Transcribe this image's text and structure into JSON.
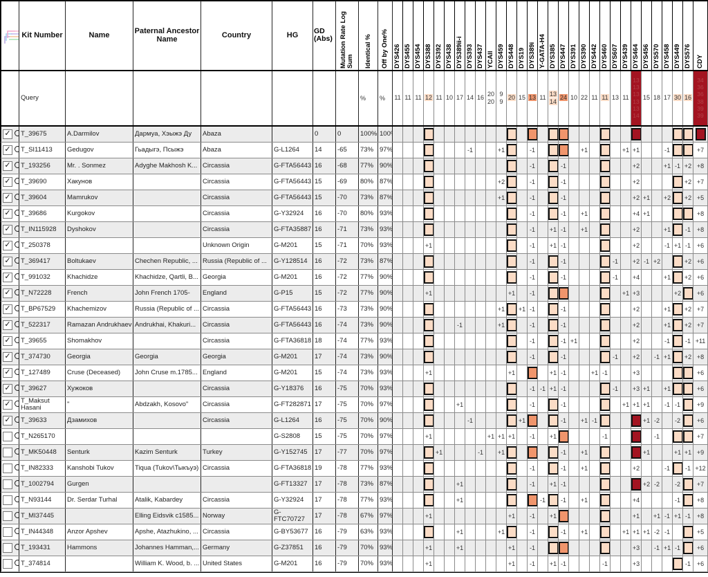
{
  "header": {
    "icon": "phylo-tree-icon",
    "kit": "Kit Number",
    "name": "Name",
    "ancestor": "Paternal Ancestor Name",
    "country": "Country",
    "hg": "HG",
    "gd": "GD (Abs)",
    "mutation": "Mutation Rate Log Sum",
    "identical": "Identical %",
    "offbyone": "Off by One%"
  },
  "markers": [
    "DYS426",
    "DYS455",
    "DYS454",
    "DYS388",
    "DYS392",
    "DYS438",
    "DYS389ii-i",
    "DYS393",
    "DYS437",
    "YCAII",
    "DYS459",
    "DYS448",
    "DYS19",
    "DYS389i",
    "Y-GATA-H4",
    "DYS385",
    "DYS447",
    "DYS391",
    "DYS390",
    "DYS442",
    "DYS460",
    "DYS607",
    "DYS439",
    "DYS464",
    "DYS456",
    "DYS570",
    "DYS458",
    "DYS449",
    "DYS576",
    "CDY"
  ],
  "highlight": {
    "DYS388": 1,
    "DYS448": 1,
    "DYS389i": 2,
    "DYS447": 2,
    "DYS385": 1,
    "DYS460": 1,
    "DYS449": 1,
    "DYS576": 1,
    "DYS464": 3,
    "CDY": 3
  },
  "colors": {
    "tone1": "#fbdcc6",
    "tone2": "#f0956c",
    "darkred": "#a31421",
    "darkred_text": "#b5434a"
  },
  "query": {
    "label": "Query",
    "identical": "%",
    "offbyone": "%",
    "values": [
      "11",
      "11",
      "11",
      "12",
      "11",
      "10",
      "17",
      "14",
      "16",
      "20 20",
      "9 9",
      "20",
      "15",
      "13",
      "11",
      "13 14",
      "24",
      "10",
      "22",
      "11",
      "11",
      "13",
      "11",
      "13 13 13 13 13 14",
      "15",
      "18",
      "17",
      "30",
      "16",
      "34 36 36 38 39 39"
    ]
  },
  "rows": [
    {
      "kit": "T_39675",
      "name": "A.Darmilov",
      "anc": "Дармуа, Хэыжэ Ду",
      "country": "Abaza",
      "hg": "",
      "gd": "0",
      "mr": "0",
      "ident": "100%",
      "off1": "100%",
      "checked": true,
      "dev": {},
      "box": [
        "DYS388",
        "DYS448",
        "DYS389i",
        "DYS385",
        "DYS447",
        "DYS460",
        "DYS464",
        "DYS449",
        "DYS576",
        "CDY"
      ]
    },
    {
      "kit": "T_SI11413",
      "name": "Gedugov",
      "anc": "Гьадыгэ, Псыжэ",
      "country": "Abaza",
      "hg": "G-L1264",
      "gd": "14",
      "mr": "-65",
      "ident": "73%",
      "off1": "97%",
      "checked": true,
      "dev": {
        "DYS393": "-1",
        "DYS459": "+1",
        "DYS389i": "-1",
        "DYS390": "+1",
        "DYS439": "+1",
        "DYS464": "+1",
        "DYS458": "-1",
        "CDY": "+7"
      },
      "box": [
        "DYS388",
        "DYS448",
        "DYS385",
        "DYS447",
        "DYS460",
        "DYS449",
        "DYS576"
      ]
    },
    {
      "kit": "T_193256",
      "name": "Mr. . Sonmez",
      "anc": "Adyghe Makhosh K...",
      "country": "Circassia",
      "hg": "G-FTA56443",
      "gd": "16",
      "mr": "-68",
      "ident": "77%",
      "off1": "90%",
      "checked": true,
      "dev": {
        "DYS389i": "-1",
        "DYS447": "-1",
        "DYS464": "+2",
        "DYS458": "+1",
        "DYS449": "-1",
        "DYS576": "+2",
        "CDY": "+8"
      },
      "box": [
        "DYS388",
        "DYS448",
        "DYS385",
        "DYS460"
      ]
    },
    {
      "kit": "T_39690",
      "name": "Хакунов",
      "anc": "",
      "country": "Circassia",
      "hg": "G-FTA56443",
      "gd": "15",
      "mr": "-69",
      "ident": "80%",
      "off1": "87%",
      "checked": true,
      "dev": {
        "DYS459": "+2",
        "DYS389i": "-1",
        "DYS447": "-1",
        "DYS464": "+2",
        "DYS576": "+2",
        "CDY": "+7"
      },
      "box": [
        "DYS388",
        "DYS448",
        "DYS385",
        "DYS460",
        "DYS449"
      ]
    },
    {
      "kit": "T_39604",
      "name": "Mamrukov",
      "anc": "",
      "country": "Circassia",
      "hg": "G-FTA56443",
      "gd": "15",
      "mr": "-70",
      "ident": "73%",
      "off1": "87%",
      "checked": true,
      "dev": {
        "DYS459": "+1",
        "DYS389i": "-1",
        "DYS447": "-1",
        "DYS464": "+2",
        "DYS456": "+1",
        "DYS458": "+2",
        "DYS576": "+2",
        "CDY": "+5"
      },
      "box": [
        "DYS388",
        "DYS448",
        "DYS385",
        "DYS460",
        "DYS449"
      ]
    },
    {
      "kit": "T_39686",
      "name": "Kurgokov",
      "anc": "",
      "country": "Circassia",
      "hg": "G-Y32924",
      "gd": "16",
      "mr": "-70",
      "ident": "80%",
      "off1": "93%",
      "checked": true,
      "dev": {
        "DYS389i": "-1",
        "DYS447": "-1",
        "DYS390": "+1",
        "DYS464": "+4",
        "DYS456": "+1",
        "CDY": "+8"
      },
      "box": [
        "DYS388",
        "DYS448",
        "DYS385",
        "DYS460",
        "DYS449",
        "DYS576"
      ]
    },
    {
      "kit": "T_IN115928",
      "name": "Dyshokov",
      "anc": "",
      "country": "Circassia",
      "hg": "G-FTA35887",
      "gd": "16",
      "mr": "-71",
      "ident": "73%",
      "off1": "93%",
      "checked": true,
      "dev": {
        "DYS389i": "-1",
        "DYS385": "+1",
        "DYS447": "-1",
        "DYS390": "+1",
        "DYS464": "+2",
        "DYS458": "+1",
        "DYS576": "-1",
        "CDY": "+8"
      },
      "box": [
        "DYS388",
        "DYS448",
        "DYS460",
        "DYS449"
      ]
    },
    {
      "kit": "T_250378",
      "name": "",
      "anc": "",
      "country": "Unknown Origin",
      "hg": "G-M201",
      "gd": "15",
      "mr": "-71",
      "ident": "70%",
      "off1": "93%",
      "checked": true,
      "dev": {
        "DYS388": "+1",
        "DYS389i": "-1",
        "DYS385": "+1",
        "DYS447": "-1",
        "DYS464": "+2",
        "DYS458": "-1",
        "DYS449": "+1",
        "DYS576": "-1",
        "CDY": "+6"
      },
      "box": [
        "DYS448",
        "DYS460"
      ]
    },
    {
      "kit": "T_369417",
      "name": "Boltukaev",
      "anc": "Chechen Republic, ...",
      "country": "Russia (Republic of ...",
      "hg": "G-Y128514",
      "gd": "16",
      "mr": "-72",
      "ident": "73%",
      "off1": "87%",
      "checked": true,
      "dev": {
        "DYS389i": "-1",
        "DYS447": "-1",
        "DYS607": "-1",
        "DYS464": "+2",
        "DYS456": "-1",
        "DYS570": "+2",
        "DYS576": "+2",
        "CDY": "+6"
      },
      "box": [
        "DYS388",
        "DYS448",
        "DYS385",
        "DYS460",
        "DYS449"
      ]
    },
    {
      "kit": "T_991032",
      "name": "Khachidze",
      "anc": "Khachidze, Qartli, B...",
      "country": "Georgia",
      "hg": "G-M201",
      "gd": "16",
      "mr": "-72",
      "ident": "77%",
      "off1": "90%",
      "checked": true,
      "dev": {
        "DYS389i": "-1",
        "DYS447": "-1",
        "DYS607": "-1",
        "DYS464": "+4",
        "DYS458": "+1",
        "DYS576": "+2",
        "CDY": "+6"
      },
      "box": [
        "DYS388",
        "DYS448",
        "DYS385",
        "DYS460",
        "DYS449"
      ]
    },
    {
      "kit": "T_N72228",
      "name": "French",
      "anc": "John French 1705-",
      "country": "England",
      "hg": "G-P15",
      "gd": "15",
      "mr": "-72",
      "ident": "77%",
      "off1": "90%",
      "checked": true,
      "dev": {
        "DYS388": "+1",
        "DYS448": "+1",
        "DYS389i": "-1",
        "DYS439": "+1",
        "DYS464": "+3",
        "DYS449": "+2",
        "CDY": "+6"
      },
      "box": [
        "DYS385",
        "DYS447",
        "DYS460",
        "DYS576"
      ]
    },
    {
      "kit": "T_BP67529",
      "name": "Khachemizov",
      "anc": "Russia (Republic of ...",
      "country": "Circassia",
      "hg": "G-FTA56443",
      "gd": "16",
      "mr": "-73",
      "ident": "73%",
      "off1": "90%",
      "checked": true,
      "dev": {
        "DYS19": "+1",
        "DYS459": "+1",
        "DYS389i": "-1",
        "DYS447": "-1",
        "DYS464": "+2",
        "DYS458": "+1",
        "DYS576": "+2",
        "CDY": "+7"
      },
      "box": [
        "DYS388",
        "DYS448",
        "DYS385",
        "DYS460",
        "DYS449"
      ]
    },
    {
      "kit": "T_522317",
      "name": "Ramazan Andrukhaev",
      "anc": "Andrukhai, Khakuri...",
      "country": "Circassia",
      "hg": "G-FTA56443",
      "gd": "16",
      "mr": "-74",
      "ident": "73%",
      "off1": "90%",
      "checked": true,
      "dev": {
        "DYS389ii-i": "-1",
        "DYS459": "+1",
        "DYS389i": "-1",
        "DYS447": "-1",
        "DYS464": "+2",
        "DYS458": "+1",
        "DYS576": "+2",
        "CDY": "+7"
      },
      "box": [
        "DYS388",
        "DYS448",
        "DYS385",
        "DYS460",
        "DYS449"
      ]
    },
    {
      "kit": "T_39655",
      "name": "Shomakhov",
      "anc": "",
      "country": "Circassia",
      "hg": "G-FTA36818",
      "gd": "18",
      "mr": "-74",
      "ident": "77%",
      "off1": "93%",
      "checked": true,
      "dev": {
        "DYS389i": "-1",
        "DYS447": "-1",
        "DYS391": "+1",
        "DYS464": "+2",
        "DYS458": "-1",
        "DYS576": "-1",
        "CDY": "+11"
      },
      "box": [
        "DYS388",
        "DYS448",
        "DYS385",
        "DYS460",
        "DYS449"
      ]
    },
    {
      "kit": "T_374730",
      "name": "Georgia",
      "anc": "Georgia",
      "country": "Georgia",
      "hg": "G-M201",
      "gd": "17",
      "mr": "-74",
      "ident": "73%",
      "off1": "90%",
      "checked": true,
      "dev": {
        "DYS389i": "-1",
        "DYS447": "-1",
        "DYS607": "-1",
        "DYS464": "+2",
        "DYS570": "-1",
        "DYS458": "+1",
        "DYS576": "+2",
        "CDY": "+8"
      },
      "box": [
        "DYS388",
        "DYS448",
        "DYS385",
        "DYS460",
        "DYS449"
      ]
    },
    {
      "kit": "T_127489",
      "name": "Cruse (Deceased)",
      "anc": "John Cruse m.1785...",
      "country": "England",
      "hg": "G-M201",
      "gd": "15",
      "mr": "-74",
      "ident": "73%",
      "off1": "93%",
      "checked": true,
      "dev": {
        "DYS388": "+1",
        "DYS448": "+1",
        "DYS385": "+1",
        "DYS447": "-1",
        "DYS442": "+1",
        "DYS460": "-1",
        "DYS464": "+3",
        "CDY": "+6"
      },
      "box": [
        "DYS389i",
        "DYS449",
        "DYS576"
      ]
    },
    {
      "kit": "T_39627",
      "name": "Хужоков",
      "anc": "",
      "country": "Circassia",
      "hg": "G-Y18376",
      "gd": "16",
      "mr": "-75",
      "ident": "70%",
      "off1": "93%",
      "checked": true,
      "dev": {
        "DYS389i": "-1",
        "Y-GATA-H4": "-1",
        "DYS385": "+1",
        "DYS447": "-1",
        "DYS607": "-1",
        "DYS464": "+3",
        "DYS456": "+1",
        "DYS458": "+1",
        "CDY": "+6"
      },
      "box": [
        "DYS388",
        "DYS448",
        "DYS460",
        "DYS449",
        "DYS576"
      ]
    },
    {
      "kit": "T_Maksut Hasani",
      "name": "\"",
      "anc": "Abdzakh, Kosovo\"",
      "country": "Circassia",
      "hg": "G-FT282871",
      "gd": "17",
      "mr": "-75",
      "ident": "70%",
      "off1": "97%",
      "checked": true,
      "dev": {
        "DYS389ii-i": "+1",
        "DYS389i": "-1",
        "DYS447": "-1",
        "DYS439": "+1",
        "DYS464": "+1",
        "DYS456": "+1",
        "DYS458": "-1",
        "DYS449": "-1",
        "CDY": "+9"
      },
      "box": [
        "DYS388",
        "DYS448",
        "DYS385",
        "DYS460",
        "DYS576"
      ]
    },
    {
      "kit": "T_39633",
      "name": "Дзамихов",
      "anc": "",
      "country": "Circassia",
      "hg": "G-L1264",
      "gd": "16",
      "mr": "-75",
      "ident": "70%",
      "off1": "90%",
      "checked": true,
      "dev": {
        "DYS393": "-1",
        "DYS19": "+1",
        "DYS447": "-1",
        "DYS390": "+1",
        "DYS442": "-1",
        "DYS456": "+1",
        "DYS570": "-2",
        "DYS449": "-2",
        "CDY": "+6"
      },
      "box": [
        "DYS388",
        "DYS448",
        "DYS389i",
        "DYS385",
        "DYS460",
        "DYS464",
        "DYS576"
      ]
    },
    {
      "kit": "T_N265170",
      "name": "",
      "anc": "",
      "country": "",
      "hg": "G-S2808",
      "gd": "15",
      "mr": "-75",
      "ident": "70%",
      "off1": "97%",
      "checked": false,
      "dev": {
        "DYS388": "+1",
        "YCAII": "+1",
        "DYS459": "+1",
        "DYS448": "+1",
        "DYS389i": "-1",
        "DYS385": "+1",
        "DYS460": "-1",
        "DYS570": "-1",
        "CDY": "+7"
      },
      "box": [
        "DYS447",
        "DYS464",
        "DYS449",
        "DYS576"
      ]
    },
    {
      "kit": "T_MK50448",
      "name": "Senturk",
      "anc": "Kazim Senturk",
      "country": "Turkey",
      "hg": "G-Y152745",
      "gd": "17",
      "mr": "-77",
      "ident": "70%",
      "off1": "97%",
      "checked": false,
      "dev": {
        "DYS392": "+1",
        "DYS437": "-1",
        "DYS459": "+1",
        "DYS447": "-1",
        "DYS390": "+1",
        "DYS456": "+1",
        "DYS449": "+1",
        "DYS576": "+1",
        "CDY": "+9"
      },
      "box": [
        "DYS388",
        "DYS448",
        "DYS389i",
        "DYS385",
        "DYS460",
        "DYS464"
      ]
    },
    {
      "kit": "T_IN82333",
      "name": "Kanshobi Tukov",
      "anc": "Tiqua (Tukov\\Тыкъуэ)",
      "country": "Circassia",
      "hg": "G-FTA36818",
      "gd": "19",
      "mr": "-78",
      "ident": "77%",
      "off1": "93%",
      "checked": false,
      "dev": {
        "DYS389i": "-1",
        "DYS447": "-1",
        "DYS390": "+1",
        "DYS464": "+2",
        "DYS458": "-1",
        "DYS576": "-1",
        "CDY": "+12"
      },
      "box": [
        "DYS388",
        "DYS448",
        "DYS385",
        "DYS460",
        "DYS449"
      ]
    },
    {
      "kit": "T_1002794",
      "name": "Gurgen",
      "anc": "",
      "country": "",
      "hg": "G-FT13327",
      "gd": "17",
      "mr": "-78",
      "ident": "73%",
      "off1": "87%",
      "checked": false,
      "dev": {
        "DYS389ii-i": "+1",
        "DYS389i": "-1",
        "DYS385": "+1",
        "DYS447": "-1",
        "DYS456": "+2",
        "DYS570": "-2",
        "DYS449": "-2",
        "CDY": "+7"
      },
      "box": [
        "DYS388",
        "DYS448",
        "DYS460",
        "DYS464",
        "DYS576"
      ]
    },
    {
      "kit": "T_N93144",
      "name": "Dr. Serdar Turhal",
      "anc": "Atalik, Kabardey",
      "country": "Circassia",
      "hg": "G-Y32924",
      "gd": "17",
      "mr": "-78",
      "ident": "77%",
      "off1": "93%",
      "checked": false,
      "dev": {
        "DYS389ii-i": "+1",
        "Y-GATA-H4": "-1",
        "DYS447": "-1",
        "DYS390": "+1",
        "DYS464": "+4",
        "DYS449": "-1",
        "CDY": "+8"
      },
      "box": [
        "DYS388",
        "DYS448",
        "DYS389i",
        "DYS385",
        "DYS460",
        "DYS576"
      ]
    },
    {
      "kit": "T_MI37445",
      "name": "",
      "anc": "Elling Eidsvik c1585...",
      "country": "Norway",
      "hg": "G-FTC70727",
      "gd": "17",
      "mr": "-78",
      "ident": "67%",
      "off1": "97%",
      "checked": false,
      "dev": {
        "DYS388": "+1",
        "DYS448": "+1",
        "DYS389i": "-1",
        "DYS385": "+1",
        "DYS464": "+1",
        "DYS570": "+1",
        "DYS458": "-1",
        "DYS449": "+1",
        "DYS576": "-1",
        "CDY": "+8"
      },
      "box": [
        "DYS447",
        "DYS460"
      ]
    },
    {
      "kit": "T_IN44348",
      "name": "Anzor Apshev",
      "anc": "Apshe, Atazhukino, ...",
      "country": "Circassia",
      "hg": "G-BY53677",
      "gd": "16",
      "mr": "-79",
      "ident": "63%",
      "off1": "93%",
      "checked": false,
      "dev": {
        "DYS389ii-i": "+1",
        "DYS459": "+1",
        "DYS389i": "-1",
        "DYS447": "-1",
        "DYS390": "+1",
        "DYS439": "+1",
        "DYS464": "+1",
        "DYS456": "+1",
        "DYS570": "-2",
        "DYS458": "-1",
        "CDY": "+5"
      },
      "box": [
        "DYS388",
        "DYS448",
        "DYS385",
        "DYS460",
        "DYS576"
      ]
    },
    {
      "kit": "T_193431",
      "name": "Hammons",
      "anc": "Johannes Hamman,...",
      "country": "Germany",
      "hg": "G-Z37851",
      "gd": "16",
      "mr": "-79",
      "ident": "70%",
      "off1": "93%",
      "checked": false,
      "dev": {
        "DYS388": "+1",
        "DYS389ii-i": "+1",
        "DYS448": "+1",
        "DYS389i": "-1",
        "DYS464": "+3",
        "DYS570": "-1",
        "DYS458": "+1",
        "DYS449": "-1",
        "CDY": "+6"
      },
      "box": [
        "DYS385",
        "DYS447",
        "DYS460",
        "DYS576"
      ]
    },
    {
      "kit": "T_374814",
      "name": "",
      "anc": "William K. Wood, b. ...",
      "country": "United States",
      "hg": "G-M201",
      "gd": "16",
      "mr": "-79",
      "ident": "70%",
      "off1": "93%",
      "checked": false,
      "dev": {
        "DYS388": "+1",
        "DYS448": "+1",
        "DYS389i": "-1",
        "DYS385": "+1",
        "DYS447": "-1",
        "DYS460": "-1",
        "DYS464": "+3",
        "DYS576": "-1",
        "CDY": "+6"
      },
      "box": [
        "DYS449"
      ]
    }
  ]
}
